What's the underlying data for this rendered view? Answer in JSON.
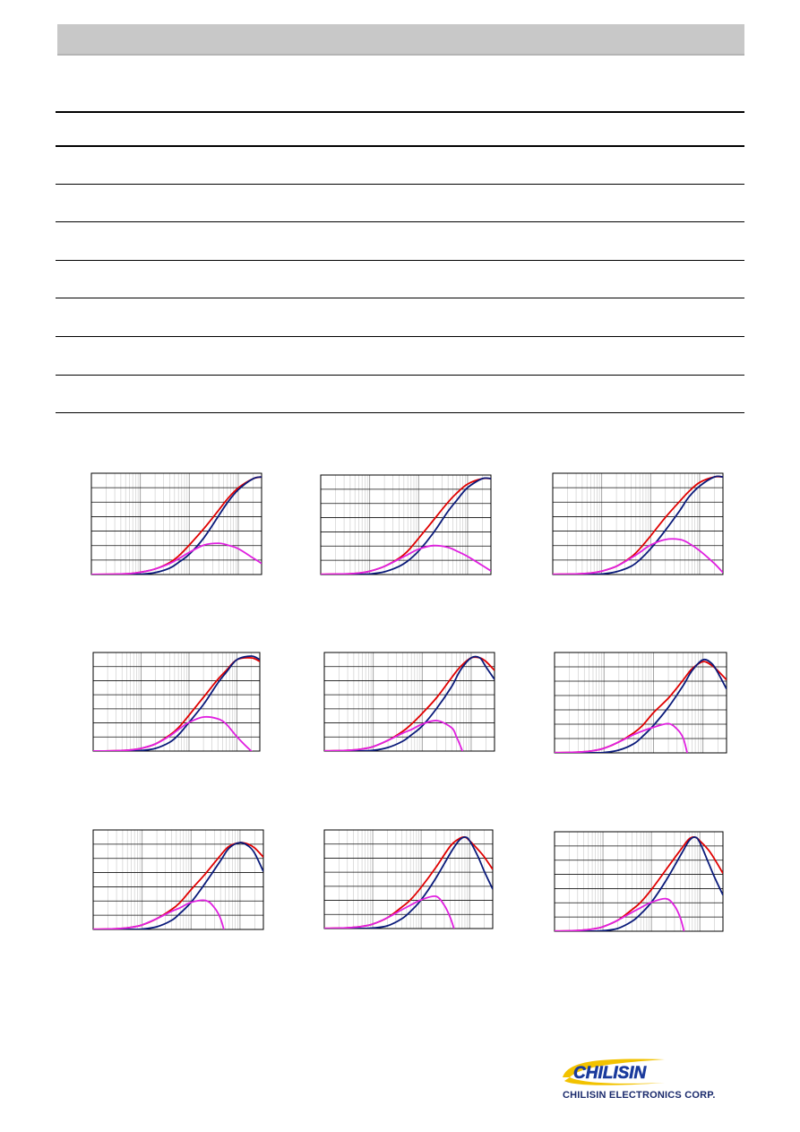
{
  "brand": {
    "colors": {
      "band": "#c8c8c8",
      "logo_blue": "#1a3a9c",
      "logo_yellow": "#f2c200"
    }
  },
  "logo": {
    "wordmark": "CHILISIN",
    "company": "CHILISIN ELECTRONICS CORP."
  },
  "table": {
    "rows": 8
  },
  "chart_data": [
    {
      "type": "line",
      "scale": "log-x",
      "grid": true,
      "series": [
        {
          "color": "#e00000",
          "x": [
            1,
            3,
            6,
            10,
            20,
            40,
            60,
            100,
            200,
            400,
            600,
            1000,
            2000,
            3000
          ],
          "y": [
            0.05,
            0.2,
            0.5,
            1.2,
            3.0,
            6.5,
            10,
            16,
            25,
            35,
            41,
            47,
            52,
            53
          ]
        },
        {
          "color": "#0a1a7a",
          "x": [
            1,
            3,
            6,
            10,
            20,
            40,
            60,
            100,
            200,
            400,
            600,
            1000,
            2000,
            3000
          ],
          "y": [
            0,
            0,
            0.05,
            0.2,
            1.0,
            3.5,
            6.5,
            11,
            20,
            32,
            39,
            46,
            52,
            53
          ]
        },
        {
          "color": "#e020e0",
          "x": [
            1,
            3,
            6,
            10,
            20,
            40,
            60,
            100,
            200,
            400,
            600,
            1000,
            2000,
            3000
          ],
          "y": [
            0.05,
            0.2,
            0.5,
            1.2,
            3.0,
            6.0,
            8.5,
            12,
            16,
            17,
            16,
            14,
            9,
            6
          ]
        }
      ]
    },
    {
      "type": "line",
      "scale": "log-x",
      "grid": true,
      "series": [
        {
          "color": "#e00000",
          "x": [
            1,
            3,
            6,
            10,
            20,
            40,
            60,
            100,
            200,
            400,
            600,
            1000,
            2000,
            3000
          ],
          "y": [
            0.1,
            0.3,
            0.8,
            1.8,
            4.5,
            9,
            13,
            20,
            30,
            40,
            45,
            50,
            53,
            53
          ]
        },
        {
          "color": "#0a1a7a",
          "x": [
            1,
            3,
            6,
            10,
            20,
            40,
            60,
            100,
            200,
            400,
            600,
            1000,
            2000,
            3000
          ],
          "y": [
            0,
            0,
            0.05,
            0.3,
            1.5,
            4.5,
            7.5,
            13,
            23,
            35,
            41,
            48,
            53,
            53
          ]
        },
        {
          "color": "#e020e0",
          "x": [
            1,
            3,
            6,
            10,
            20,
            40,
            60,
            100,
            200,
            400,
            600,
            1000,
            2000,
            3000
          ],
          "y": [
            0.1,
            0.3,
            0.8,
            1.8,
            4.5,
            8.5,
            11,
            14,
            16,
            15,
            13,
            10,
            5,
            2
          ]
        }
      ]
    },
    {
      "type": "line",
      "scale": "log-x",
      "grid": true,
      "series": [
        {
          "color": "#e00000",
          "x": [
            1,
            3,
            6,
            10,
            20,
            40,
            60,
            100,
            200,
            400,
            600,
            1000,
            2000,
            3000
          ],
          "y": [
            0.1,
            0.3,
            0.8,
            1.8,
            4.5,
            9.5,
            14,
            21,
            31,
            40,
            45,
            50,
            53,
            53
          ]
        },
        {
          "color": "#0a1a7a",
          "x": [
            1,
            3,
            6,
            10,
            20,
            40,
            60,
            100,
            200,
            400,
            600,
            1000,
            2000,
            3000
          ],
          "y": [
            0,
            0,
            0.05,
            0.3,
            1.5,
            4.5,
            8,
            14,
            24,
            35,
            42,
            48,
            53,
            53
          ]
        },
        {
          "color": "#e020e0",
          "x": [
            1,
            3,
            6,
            10,
            20,
            40,
            60,
            100,
            200,
            400,
            600,
            1000,
            2000,
            3000
          ],
          "y": [
            0.1,
            0.3,
            0.8,
            1.8,
            4.5,
            9,
            12,
            16,
            19,
            19,
            17,
            13,
            6,
            1
          ]
        }
      ]
    },
    {
      "type": "line",
      "scale": "log-x",
      "grid": true,
      "series": [
        {
          "color": "#e00000",
          "x": [
            1,
            3,
            6,
            10,
            20,
            40,
            60,
            100,
            200,
            400,
            600,
            1000,
            2000,
            3000
          ],
          "y": [
            0.05,
            0.2,
            0.6,
            1.5,
            4,
            9,
            13,
            20,
            30,
            40,
            45,
            51,
            52,
            50
          ]
        },
        {
          "color": "#0a1a7a",
          "x": [
            1,
            3,
            6,
            10,
            20,
            40,
            60,
            100,
            200,
            400,
            600,
            1000,
            2000,
            3000
          ],
          "y": [
            0,
            0,
            0.05,
            0.3,
            1.5,
            5,
            9,
            16,
            26,
            38,
            44,
            51,
            53,
            51
          ]
        },
        {
          "color": "#e020e0",
          "x": [
            1,
            3,
            6,
            10,
            20,
            40,
            60,
            100,
            200,
            400,
            600,
            1000,
            2000,
            3000
          ],
          "y": [
            0.05,
            0.2,
            0.6,
            1.5,
            4,
            8.5,
            12,
            16,
            19,
            18,
            15,
            8,
            0,
            -3
          ]
        }
      ]
    },
    {
      "type": "line",
      "scale": "log-x",
      "grid": true,
      "series": [
        {
          "color": "#e00000",
          "x": [
            1,
            3,
            6,
            10,
            20,
            40,
            60,
            100,
            200,
            400,
            600,
            1000,
            1500,
            2000,
            3000
          ],
          "y": [
            0.1,
            0.4,
            1.2,
            2.5,
            6,
            11,
            15,
            21,
            30,
            41,
            47,
            52,
            52,
            50,
            45
          ]
        },
        {
          "color": "#0a1a7a",
          "x": [
            1,
            3,
            6,
            10,
            20,
            40,
            60,
            100,
            200,
            400,
            600,
            1000,
            1500,
            2000,
            3000
          ],
          "y": [
            0,
            0,
            0.1,
            0.4,
            2,
            5.5,
            9,
            14,
            24,
            36,
            45,
            52,
            52,
            47,
            40
          ]
        },
        {
          "color": "#e020e0",
          "x": [
            1,
            3,
            6,
            10,
            20,
            40,
            60,
            100,
            200,
            400,
            500,
            600,
            800
          ],
          "y": [
            0.1,
            0.4,
            1.2,
            2.5,
            6,
            10,
            12,
            15,
            17,
            13,
            8,
            3,
            -6
          ]
        }
      ]
    },
    {
      "type": "line",
      "scale": "log-x",
      "grid": true,
      "series": [
        {
          "color": "#e00000",
          "x": [
            1,
            3,
            6,
            10,
            20,
            40,
            60,
            100,
            200,
            400,
            600,
            1000,
            1500,
            2000,
            3000
          ],
          "y": [
            0.1,
            0.4,
            1.2,
            2.5,
            6,
            11,
            15,
            22,
            30,
            40,
            46,
            50,
            48,
            45,
            40
          ]
        },
        {
          "color": "#0a1a7a",
          "x": [
            1,
            3,
            6,
            10,
            20,
            40,
            60,
            100,
            200,
            400,
            600,
            1000,
            1500,
            2000,
            3000
          ],
          "y": [
            0,
            0,
            0.05,
            0.2,
            1.5,
            5,
            9,
            15,
            25,
            37,
            45,
            51,
            49,
            44,
            35
          ]
        },
        {
          "color": "#e020e0",
          "x": [
            1,
            3,
            6,
            10,
            20,
            40,
            60,
            100,
            200,
            300,
            400,
            500
          ],
          "y": [
            0.1,
            0.4,
            1.2,
            2.5,
            6,
            10,
            12,
            14,
            16,
            13,
            8,
            -2
          ]
        }
      ]
    },
    {
      "type": "line",
      "scale": "log-x",
      "grid": true,
      "series": [
        {
          "color": "#e00000",
          "x": [
            1,
            3,
            6,
            10,
            20,
            40,
            60,
            100,
            200,
            400,
            600,
            1000,
            1500,
            2000,
            3000
          ],
          "y": [
            0.1,
            0.4,
            1.2,
            2.5,
            6,
            11,
            15,
            22,
            31,
            41,
            46,
            48,
            47,
            45,
            40
          ]
        },
        {
          "color": "#0a1a7a",
          "x": [
            1,
            3,
            6,
            10,
            20,
            40,
            60,
            100,
            200,
            400,
            600,
            1000,
            1500,
            2000,
            3000
          ],
          "y": [
            0,
            0,
            0.05,
            0.2,
            1.5,
            5,
            9,
            15,
            26,
            38,
            45,
            48,
            46,
            42,
            32
          ]
        },
        {
          "color": "#e020e0",
          "x": [
            1,
            3,
            6,
            10,
            20,
            40,
            60,
            100,
            200,
            300,
            400,
            500
          ],
          "y": [
            0.1,
            0.4,
            1.2,
            2.5,
            6,
            10,
            12,
            15,
            16,
            12,
            6,
            -3
          ]
        }
      ]
    },
    {
      "type": "line",
      "scale": "log-x",
      "grid": true,
      "series": [
        {
          "color": "#e00000",
          "x": [
            1,
            3,
            6,
            10,
            20,
            40,
            60,
            100,
            200,
            400,
            600,
            800,
            1000,
            1500,
            2000,
            3000
          ],
          "y": [
            0.1,
            0.4,
            1.2,
            2.5,
            6,
            12,
            16,
            23,
            34,
            46,
            50,
            51,
            49,
            44,
            40,
            33
          ]
        },
        {
          "color": "#0a1a7a",
          "x": [
            1,
            3,
            6,
            10,
            20,
            40,
            60,
            100,
            200,
            400,
            600,
            800,
            1000,
            1500,
            2000,
            3000
          ],
          "y": [
            0,
            0,
            0.05,
            0.3,
            1.5,
            5.5,
            9.5,
            16,
            28,
            42,
            49,
            51,
            49,
            40,
            32,
            22
          ]
        },
        {
          "color": "#e020e0",
          "x": [
            1,
            3,
            6,
            10,
            20,
            40,
            60,
            100,
            200,
            300,
            400,
            500
          ],
          "y": [
            0.1,
            0.4,
            1.2,
            2.5,
            6,
            10.5,
            13,
            16,
            18,
            13,
            6,
            -2
          ]
        }
      ]
    },
    {
      "type": "line",
      "scale": "log-x",
      "grid": true,
      "series": [
        {
          "color": "#e00000",
          "x": [
            1,
            3,
            6,
            10,
            20,
            40,
            60,
            100,
            200,
            400,
            600,
            800,
            1000,
            1500,
            2000,
            3000
          ],
          "y": [
            0.1,
            0.4,
            1.2,
            2.5,
            6,
            12,
            16,
            23,
            34,
            45,
            51,
            52,
            50,
            45,
            40,
            32
          ]
        },
        {
          "color": "#0a1a7a",
          "x": [
            1,
            3,
            6,
            10,
            20,
            40,
            60,
            100,
            200,
            400,
            600,
            800,
            1000,
            1500,
            2000,
            3000
          ],
          "y": [
            0,
            0,
            0.05,
            0.3,
            1.5,
            5.5,
            9.5,
            16,
            28,
            42,
            50,
            52,
            49,
            38,
            30,
            20
          ]
        },
        {
          "color": "#e020e0",
          "x": [
            1,
            3,
            6,
            10,
            20,
            40,
            60,
            100,
            200,
            300,
            400,
            500
          ],
          "y": [
            0.1,
            0.4,
            1.2,
            2.5,
            6,
            10.5,
            13,
            16,
            18,
            14,
            7,
            -3
          ]
        }
      ]
    }
  ]
}
